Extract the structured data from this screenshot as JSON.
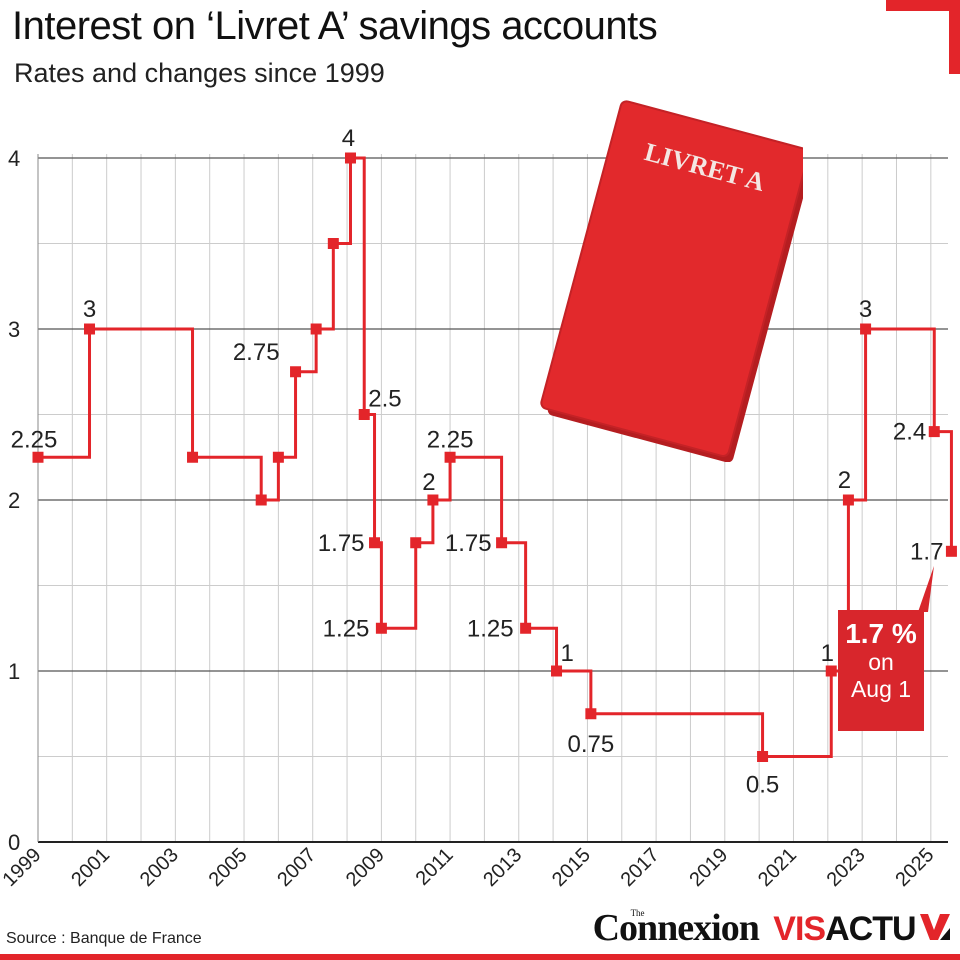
{
  "header": {
    "title": "Interest on ‘Livret A’ savings accounts",
    "subtitle": "Rates and changes since 1999"
  },
  "book": {
    "cover_text": "LIVRET A"
  },
  "callout": {
    "value": "1.7 %",
    "line2": "on",
    "line3": "Aug 1"
  },
  "footer": {
    "source": "Source : Banque de France",
    "brand_main": "Connexion",
    "brand_small": "The",
    "brand_vis": "VIS",
    "brand_actu": "ACTU"
  },
  "colors": {
    "accent": "#e3252a",
    "grid": "#555555",
    "minor_grid": "#cccccc",
    "background": "#ffffff"
  },
  "chart_data": {
    "type": "line",
    "step": true,
    "title": "Interest on ‘Livret A’ savings accounts",
    "subtitle": "Rates and changes since 1999",
    "xlabel": "",
    "ylabel": "",
    "xlim": [
      1999,
      2025.5
    ],
    "ylim": [
      0,
      4
    ],
    "x_ticks": [
      "1999",
      "2001",
      "2003",
      "2005",
      "2007",
      "2009",
      "2011",
      "2013",
      "2015",
      "2017",
      "2019",
      "2021",
      "2023",
      "2025"
    ],
    "y_ticks": [
      "0",
      "1",
      "2",
      "3",
      "4"
    ],
    "grid": true,
    "series": [
      {
        "points": [
          {
            "x": 1999.0,
            "y": 2.25,
            "label": "2.25"
          },
          {
            "x": 2000.5,
            "y": 3.0,
            "label": "3"
          },
          {
            "x": 2003.5,
            "y": 2.25,
            "label": ""
          },
          {
            "x": 2005.5,
            "y": 2.0,
            "label": ""
          },
          {
            "x": 2006.0,
            "y": 2.25,
            "label": ""
          },
          {
            "x": 2006.5,
            "y": 2.75,
            "label": "2.75"
          },
          {
            "x": 2007.1,
            "y": 3.0,
            "label": ""
          },
          {
            "x": 2007.6,
            "y": 3.5,
            "label": ""
          },
          {
            "x": 2008.1,
            "y": 4.0,
            "label": "4"
          },
          {
            "x": 2008.5,
            "y": 2.5,
            "label": "2.5"
          },
          {
            "x": 2008.8,
            "y": 1.75,
            "label": "1.75"
          },
          {
            "x": 2009.0,
            "y": 1.25,
            "label": "1.25"
          },
          {
            "x": 2010.0,
            "y": 1.75,
            "label": ""
          },
          {
            "x": 2010.5,
            "y": 2.0,
            "label": "2"
          },
          {
            "x": 2011.0,
            "y": 2.25,
            "label": "2.25"
          },
          {
            "x": 2012.5,
            "y": 1.75,
            "label": "1.75"
          },
          {
            "x": 2013.2,
            "y": 1.25,
            "label": "1.25"
          },
          {
            "x": 2014.1,
            "y": 1.0,
            "label": "1"
          },
          {
            "x": 2015.1,
            "y": 0.75,
            "label": "0.75"
          },
          {
            "x": 2020.1,
            "y": 0.5,
            "label": "0.5"
          },
          {
            "x": 2022.1,
            "y": 1.0,
            "label": "1"
          },
          {
            "x": 2022.6,
            "y": 2.0,
            "label": "2"
          },
          {
            "x": 2023.1,
            "y": 3.0,
            "label": "3"
          },
          {
            "x": 2025.1,
            "y": 2.4,
            "label": "2.4"
          },
          {
            "x": 2025.6,
            "y": 1.7,
            "label": "1.7"
          }
        ]
      }
    ]
  }
}
